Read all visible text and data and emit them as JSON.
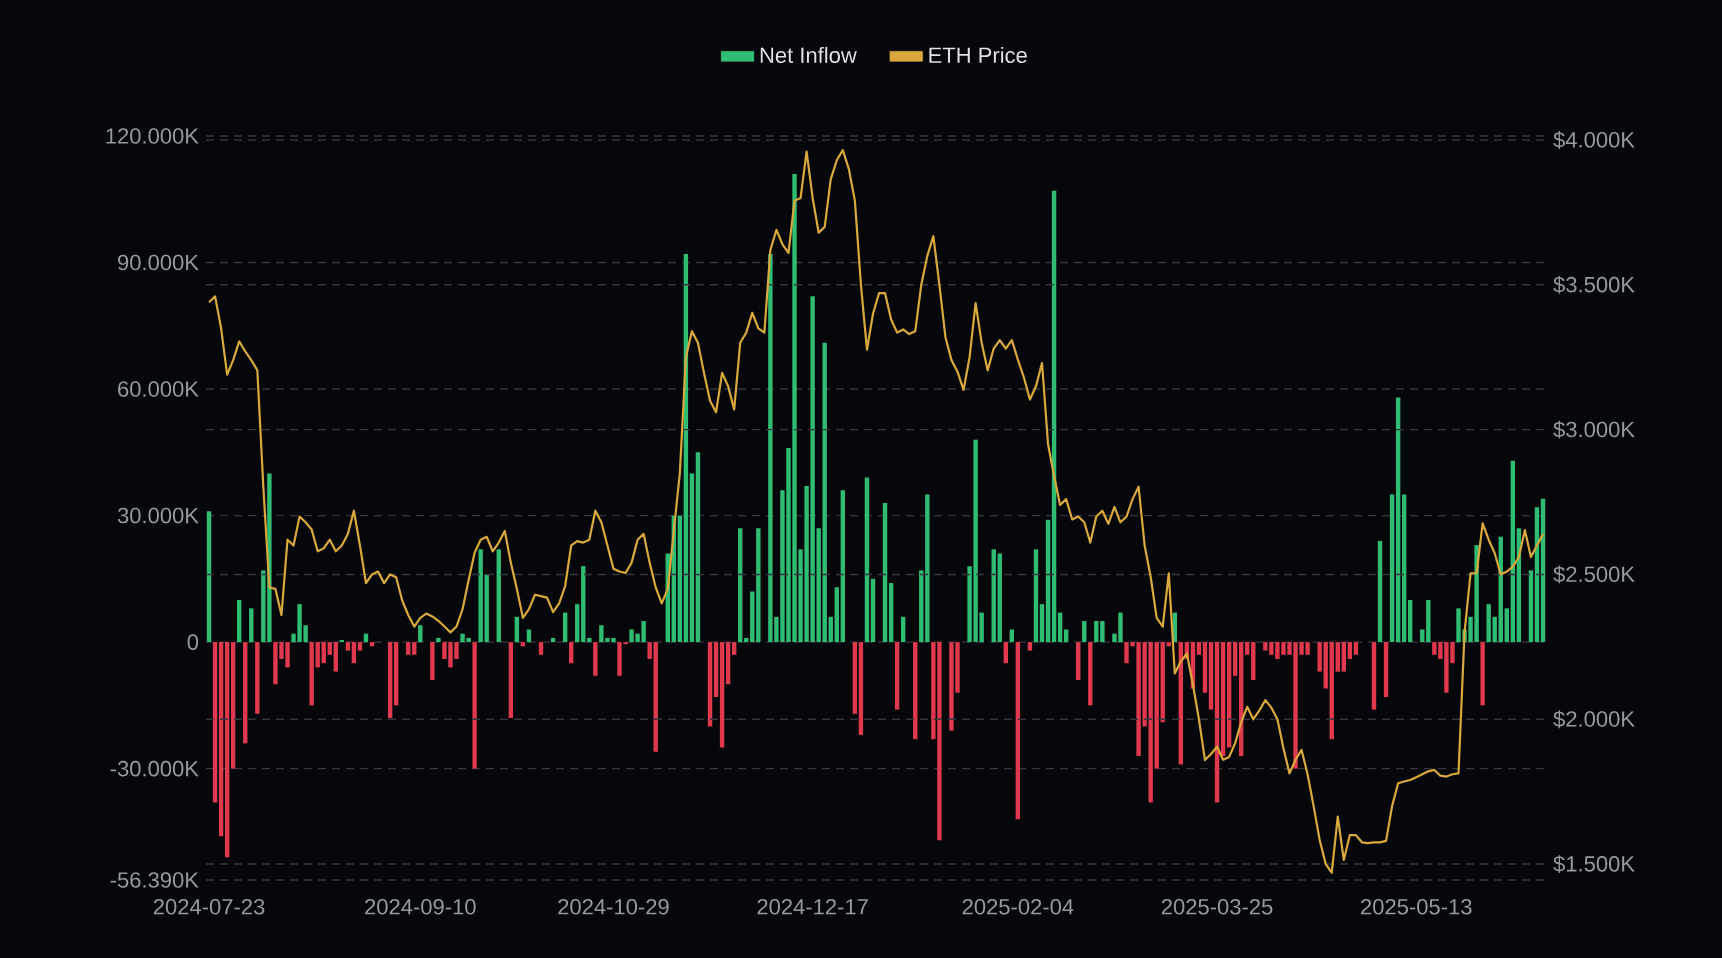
{
  "chart_data": {
    "type": "bar",
    "categories": [
      "2024-07-23",
      null,
      null,
      null,
      null,
      null,
      null,
      null,
      null,
      null,
      null,
      null,
      null,
      null,
      null,
      null,
      null,
      null,
      null,
      null,
      null,
      null,
      null,
      null,
      null,
      null,
      null,
      null,
      null,
      null,
      null,
      null,
      null,
      null,
      null,
      "2024-09-10",
      null,
      null,
      null,
      null,
      null,
      null,
      null,
      null,
      null,
      null,
      null,
      null,
      null,
      null,
      null,
      null,
      null,
      null,
      null,
      null,
      null,
      null,
      null,
      null,
      null,
      null,
      null,
      null,
      null,
      null,
      null,
      "2024-10-29",
      null,
      null,
      null,
      null,
      null,
      null,
      null,
      null,
      null,
      null,
      null,
      null,
      null,
      null,
      null,
      null,
      null,
      null,
      null,
      null,
      null,
      null,
      null,
      null,
      null,
      null,
      null,
      null,
      null,
      null,
      null,
      null,
      "2024-12-17",
      null,
      null,
      null,
      null,
      null,
      null,
      null,
      null,
      null,
      null,
      null,
      null,
      null,
      null,
      null,
      null,
      null,
      null,
      null,
      null,
      null,
      null,
      null,
      null,
      null,
      null,
      null,
      null,
      null,
      null,
      null,
      null,
      null,
      "2025-02-04",
      null,
      null,
      null,
      null,
      null,
      null,
      null,
      null,
      null,
      null,
      null,
      null,
      null,
      null,
      null,
      null,
      null,
      null,
      null,
      null,
      null,
      null,
      null,
      null,
      null,
      null,
      null,
      null,
      null,
      null,
      null,
      null,
      "2025-03-25",
      null,
      null,
      null,
      null,
      null,
      null,
      null,
      null,
      null,
      null,
      null,
      null,
      null,
      null,
      null,
      null,
      null,
      null,
      null,
      null,
      null,
      null,
      null,
      null,
      null,
      null,
      null,
      null,
      null,
      null,
      null,
      null,
      "2025-05-13",
      null,
      null,
      null,
      null,
      null,
      null,
      null,
      null,
      null,
      null,
      null,
      null,
      null,
      null,
      null,
      null,
      null,
      null,
      null,
      null,
      null
    ],
    "series": [
      {
        "name": "Net Inflow",
        "color": "#2ebd72",
        "values": [
          31000,
          -38000,
          -46000,
          -51000,
          -30000,
          10000,
          -24000,
          8000,
          -17000,
          17000,
          40000,
          -10000,
          -4000,
          -6000,
          2000,
          9000,
          4000,
          -15000,
          -6000,
          -5000,
          -3000,
          -7000,
          500,
          -2000,
          -5000,
          -2000,
          2000,
          -1000,
          0,
          0,
          -18000,
          -15000,
          0,
          -3000,
          -3000,
          4000,
          0,
          -9000,
          1000,
          -4000,
          -6000,
          -4000,
          2000,
          1000,
          -30000,
          22000,
          16000,
          0,
          22000,
          0,
          -18000,
          6000,
          -1000,
          3000,
          0,
          -3000,
          0,
          1000,
          0,
          7000,
          -5000,
          9000,
          18000,
          1000,
          -8000,
          4000,
          1000,
          1000,
          -8000,
          -500,
          3000,
          2000,
          5000,
          -4000,
          -26000,
          0,
          21000,
          30000,
          30000,
          92000,
          40000,
          45000,
          0,
          -20000,
          -13000,
          -25000,
          -10000,
          -3000,
          27000,
          1000,
          12000,
          27000,
          0,
          92000,
          6000,
          36000,
          46000,
          111000,
          22000,
          37000,
          82000,
          27000,
          71000,
          6000,
          13000,
          36000,
          0,
          -17000,
          -22000,
          39000,
          15000,
          0,
          33000,
          14000,
          -16000,
          6000,
          0,
          -23000,
          17000,
          35000,
          -23000,
          -47000,
          0,
          -21000,
          -12000,
          0,
          18000,
          48000,
          7000,
          0,
          22000,
          21000,
          -5000,
          3000,
          -42000,
          0,
          -2000,
          22000,
          9000,
          29000,
          107000,
          7000,
          3000,
          0,
          -9000,
          5000,
          -15000,
          5000,
          5000,
          0,
          2000,
          7000,
          -5000,
          -1000,
          -27000,
          -20000,
          -38000,
          -30000,
          -19000,
          -1000,
          7000,
          -29000,
          -4000,
          -11000,
          -3000,
          -12000,
          -16000,
          -38000,
          -27000,
          -25000,
          -8000,
          -27000,
          -3000,
          -9000,
          0,
          -2000,
          -3000,
          -4000,
          -3000,
          -3000,
          -30000,
          -3000,
          -3000,
          0,
          -7000,
          -11000,
          -23000,
          -7000,
          -7000,
          -4000,
          -3000,
          0,
          0,
          -16000,
          24000,
          -13000,
          35000,
          58000,
          35000,
          10000,
          0,
          3000,
          10000,
          -3000,
          -4000,
          -12000,
          -5000,
          8000,
          3000,
          6000,
          23000,
          -15000,
          9000,
          6000,
          25000,
          8000,
          43000,
          27000,
          0,
          17000,
          32000,
          34000
        ],
        "colors": [
          "#2ebd72",
          "#e0394d",
          "#e0394d",
          "#e0394d",
          "#e0394d",
          "#2ebd72",
          "#e0394d",
          "#2ebd72",
          "#e0394d",
          "#2ebd72",
          "#2ebd72",
          "#e0394d",
          "#e0394d",
          "#e0394d",
          "#2ebd72",
          "#2ebd72",
          "#2ebd72",
          "#e0394d",
          "#e0394d",
          "#e0394d",
          "#e0394d",
          "#e0394d",
          "#2ebd72",
          "#e0394d",
          "#e0394d",
          "#e0394d",
          "#2ebd72",
          "#e0394d",
          "#2ebd72",
          "#2ebd72",
          "#e0394d",
          "#e0394d",
          "#2ebd72",
          "#e0394d",
          "#e0394d",
          "#2ebd72",
          "#2ebd72",
          "#e0394d",
          "#2ebd72",
          "#e0394d",
          "#e0394d",
          "#e0394d",
          "#2ebd72",
          "#2ebd72",
          "#e0394d",
          "#2ebd72",
          "#2ebd72",
          "#2ebd72",
          "#2ebd72",
          "#2ebd72",
          "#e0394d",
          "#2ebd72",
          "#e0394d",
          "#2ebd72",
          "#2ebd72",
          "#e0394d",
          "#2ebd72",
          "#2ebd72",
          "#2ebd72",
          "#2ebd72",
          "#e0394d",
          "#2ebd72",
          "#2ebd72",
          "#2ebd72",
          "#e0394d",
          "#2ebd72",
          "#2ebd72",
          "#2ebd72",
          "#e0394d",
          "#e0394d",
          "#2ebd72",
          "#2ebd72",
          "#2ebd72",
          "#e0394d",
          "#e0394d",
          "#2ebd72",
          "#2ebd72",
          "#2ebd72",
          "#2ebd72",
          "#2ebd72",
          "#2ebd72",
          "#2ebd72",
          "#2ebd72",
          "#e0394d",
          "#e0394d",
          "#e0394d",
          "#e0394d",
          "#e0394d",
          "#2ebd72",
          "#2ebd72",
          "#2ebd72",
          "#2ebd72",
          "#2ebd72",
          "#2ebd72",
          "#2ebd72",
          "#2ebd72",
          "#2ebd72",
          "#2ebd72",
          "#2ebd72",
          "#2ebd72",
          "#2ebd72",
          "#2ebd72",
          "#2ebd72",
          "#2ebd72",
          "#2ebd72",
          "#2ebd72",
          "#2ebd72",
          "#e0394d",
          "#e0394d",
          "#2ebd72",
          "#2ebd72",
          "#2ebd72",
          "#2ebd72",
          "#2ebd72",
          "#e0394d",
          "#2ebd72",
          "#2ebd72",
          "#e0394d",
          "#2ebd72",
          "#2ebd72",
          "#e0394d",
          "#e0394d",
          "#2ebd72",
          "#e0394d",
          "#e0394d",
          "#2ebd72",
          "#2ebd72",
          "#2ebd72",
          "#2ebd72",
          "#2ebd72",
          "#2ebd72",
          "#2ebd72",
          "#e0394d",
          "#2ebd72",
          "#e0394d",
          "#2ebd72",
          "#e0394d",
          "#2ebd72",
          "#2ebd72",
          "#2ebd72",
          "#2ebd72",
          "#2ebd72",
          "#2ebd72",
          "#2ebd72",
          "#e0394d",
          "#2ebd72",
          "#e0394d",
          "#2ebd72",
          "#2ebd72",
          "#2ebd72",
          "#2ebd72",
          "#2ebd72",
          "#e0394d",
          "#e0394d",
          "#e0394d",
          "#e0394d",
          "#e0394d",
          "#e0394d",
          "#e0394d",
          "#e0394d",
          "#2ebd72",
          "#e0394d",
          "#e0394d",
          "#e0394d",
          "#e0394d",
          "#e0394d",
          "#e0394d",
          "#e0394d",
          "#e0394d",
          "#e0394d",
          "#e0394d",
          "#e0394d",
          "#e0394d",
          "#e0394d",
          "#2ebd72",
          "#e0394d",
          "#e0394d",
          "#e0394d",
          "#e0394d",
          "#e0394d",
          "#e0394d",
          "#e0394d",
          "#e0394d",
          "#2ebd72",
          "#e0394d",
          "#e0394d",
          "#e0394d",
          "#e0394d",
          "#e0394d",
          "#e0394d",
          "#e0394d",
          "#2ebd72",
          "#2ebd72",
          "#e0394d",
          "#2ebd72",
          "#e0394d",
          "#2ebd72",
          "#2ebd72",
          "#2ebd72",
          "#2ebd72",
          "#2ebd72",
          "#2ebd72",
          "#2ebd72",
          "#e0394d",
          "#e0394d",
          "#e0394d",
          "#e0394d",
          "#2ebd72",
          "#2ebd72",
          "#2ebd72",
          "#2ebd72",
          "#e0394d",
          "#2ebd72",
          "#2ebd72",
          "#2ebd72",
          "#2ebd72",
          "#2ebd72",
          "#2ebd72",
          "#2ebd72",
          "#2ebd72",
          "#2ebd72",
          "#2ebd72"
        ]
      },
      {
        "name": "ETH Price",
        "type": "line",
        "axis": "y2",
        "color": "#d9a93d",
        "values": [
          3440,
          3460,
          3350,
          3190,
          3240,
          3305,
          3270,
          3240,
          3205,
          2800,
          2455,
          2450,
          2360,
          2620,
          2600,
          2700,
          2680,
          2655,
          2580,
          2590,
          2620,
          2580,
          2600,
          2640,
          2720,
          2600,
          2470,
          2500,
          2510,
          2470,
          2500,
          2490,
          2410,
          2360,
          2320,
          2350,
          2365,
          2355,
          2340,
          2320,
          2300,
          2320,
          2380,
          2480,
          2575,
          2620,
          2630,
          2580,
          2610,
          2650,
          2540,
          2450,
          2350,
          2380,
          2430,
          2425,
          2420,
          2370,
          2400,
          2460,
          2600,
          2615,
          2610,
          2620,
          2720,
          2680,
          2600,
          2520,
          2510,
          2505,
          2540,
          2620,
          2640,
          2540,
          2455,
          2400,
          2450,
          2650,
          2850,
          3250,
          3340,
          3300,
          3196,
          3100,
          3060,
          3196,
          3150,
          3070,
          3300,
          3335,
          3403,
          3350,
          3335,
          3620,
          3690,
          3640,
          3610,
          3790,
          3800,
          3960,
          3800,
          3680,
          3700,
          3865,
          3930,
          3965,
          3900,
          3790,
          3500,
          3276,
          3400,
          3471,
          3471,
          3380,
          3335,
          3346,
          3330,
          3340,
          3500,
          3600,
          3668,
          3500,
          3320,
          3240,
          3200,
          3137,
          3250,
          3437,
          3300,
          3205,
          3280,
          3309,
          3280,
          3309,
          3242,
          3180,
          3104,
          3150,
          3230,
          2950,
          2840,
          2740,
          2760,
          2690,
          2700,
          2680,
          2610,
          2700,
          2720,
          2675,
          2733,
          2680,
          2700,
          2760,
          2803,
          2600,
          2492,
          2350,
          2320,
          2504,
          2158,
          2200,
          2227,
          2120,
          2000,
          1859,
          1880,
          1905,
          1860,
          1870,
          1917,
          1990,
          2043,
          2000,
          2030,
          2066,
          2040,
          2000,
          1900,
          1813,
          1860,
          1894,
          1810,
          1700,
          1583,
          1500,
          1470,
          1664,
          1514,
          1600,
          1600,
          1575,
          1572,
          1575,
          1575,
          1580,
          1700,
          1779,
          1785,
          1790,
          1800,
          1810,
          1820,
          1825,
          1805,
          1802,
          1810,
          1813,
          2300,
          2504,
          2504,
          2676,
          2620,
          2573,
          2500,
          2510,
          2527,
          2560,
          2653,
          2560,
          2600,
          2640
        ]
      }
    ],
    "ylim": [
      -56390,
      120000
    ],
    "yticks": [
      {
        "value": -56390,
        "label": "-56.390K"
      },
      {
        "value": -30000,
        "label": "-30.000K"
      },
      0,
      {
        "value": 30000,
        "label": "30.000K"
      },
      {
        "value": 60000,
        "label": "60.000K"
      },
      {
        "value": 90000,
        "label": "90.000K"
      },
      {
        "value": 120000,
        "label": "120.000K"
      }
    ],
    "y2lim": [
      1445,
      4014
    ],
    "y2ticks": [
      {
        "value": 1500,
        "label": "$1.500K"
      },
      {
        "value": 2000,
        "label": "$2.000K"
      },
      {
        "value": 2500,
        "label": "$2.500K"
      },
      {
        "value": 3000,
        "label": "$3.000K"
      },
      {
        "value": 3500,
        "label": "$3.500K"
      },
      {
        "value": 4000,
        "label": "$4.000K"
      }
    ],
    "grid": "y",
    "legend": "top"
  }
}
